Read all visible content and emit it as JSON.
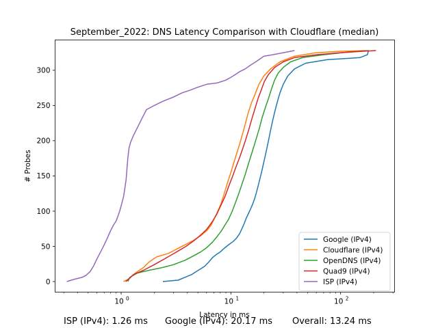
{
  "chart_data": {
    "type": "line",
    "title": "September_2022: DNS Latency Comparison with Cloudflare (median)",
    "xlabel": "Latency in ms",
    "ylabel": "# Probes",
    "xscale": "log",
    "xlim": [
      0.25,
      310
    ],
    "ylim": [
      -15,
      343
    ],
    "xticks": [
      {
        "value": 1,
        "label": "10",
        "exp": "0"
      },
      {
        "value": 10,
        "label": "10",
        "exp": "1"
      },
      {
        "value": 100,
        "label": "10",
        "exp": "2"
      }
    ],
    "yticks": [
      0,
      50,
      100,
      150,
      200,
      250,
      300
    ],
    "grid": false,
    "legend_position": "lower right",
    "series": [
      {
        "name": "Google (IPv4)",
        "color": "#1f77b4",
        "points": [
          [
            2.4,
            0
          ],
          [
            3.3,
            2
          ],
          [
            3.8,
            6
          ],
          [
            4.4,
            10
          ],
          [
            4.8,
            14
          ],
          [
            5.3,
            18
          ],
          [
            5.8,
            22
          ],
          [
            6.3,
            28
          ],
          [
            6.8,
            34
          ],
          [
            7.3,
            38
          ],
          [
            8.0,
            42
          ],
          [
            8.8,
            48
          ],
          [
            9.5,
            52
          ],
          [
            10.5,
            57
          ],
          [
            11.3,
            62
          ],
          [
            12.0,
            68
          ],
          [
            12.6,
            75
          ],
          [
            13.2,
            82
          ],
          [
            13.8,
            90
          ],
          [
            14.8,
            100
          ],
          [
            15.8,
            110
          ],
          [
            16.5,
            118
          ],
          [
            17.2,
            128
          ],
          [
            18.0,
            140
          ],
          [
            19.0,
            155
          ],
          [
            20.0,
            170
          ],
          [
            21.0,
            185
          ],
          [
            22.0,
            200
          ],
          [
            23.0,
            215
          ],
          [
            24.0,
            228
          ],
          [
            25.0,
            240
          ],
          [
            26.5,
            255
          ],
          [
            28.0,
            268
          ],
          [
            30.0,
            280
          ],
          [
            33.0,
            292
          ],
          [
            38.0,
            302
          ],
          [
            48.0,
            310
          ],
          [
            75.0,
            315
          ],
          [
            150,
            318
          ],
          [
            175,
            322
          ],
          [
            180,
            328
          ]
        ]
      },
      {
        "name": "Cloudflare (IPv4)",
        "color": "#ff7f0e",
        "points": [
          [
            1.05,
            0
          ],
          [
            1.15,
            3
          ],
          [
            1.25,
            8
          ],
          [
            1.4,
            14
          ],
          [
            1.6,
            20
          ],
          [
            1.8,
            28
          ],
          [
            2.1,
            35
          ],
          [
            2.7,
            40
          ],
          [
            3.2,
            46
          ],
          [
            3.8,
            52
          ],
          [
            4.5,
            58
          ],
          [
            5.3,
            65
          ],
          [
            6.0,
            72
          ],
          [
            6.6,
            80
          ],
          [
            7.1,
            90
          ],
          [
            7.6,
            100
          ],
          [
            8.1,
            110
          ],
          [
            8.7,
            125
          ],
          [
            9.3,
            140
          ],
          [
            10.0,
            155
          ],
          [
            10.6,
            168
          ],
          [
            11.2,
            180
          ],
          [
            12.0,
            195
          ],
          [
            12.8,
            210
          ],
          [
            13.6,
            225
          ],
          [
            14.4,
            240
          ],
          [
            15.5,
            255
          ],
          [
            16.8,
            268
          ],
          [
            18.0,
            280
          ],
          [
            20.0,
            292
          ],
          [
            23.0,
            302
          ],
          [
            28.0,
            312
          ],
          [
            38.0,
            320
          ],
          [
            60.0,
            325
          ],
          [
            100,
            327
          ],
          [
            170,
            328
          ]
        ]
      },
      {
        "name": "OpenDNS (IPv4)",
        "color": "#2ca02c",
        "points": [
          [
            1.15,
            0
          ],
          [
            1.2,
            6
          ],
          [
            1.4,
            12
          ],
          [
            1.8,
            16
          ],
          [
            2.4,
            20
          ],
          [
            3.0,
            24
          ],
          [
            3.8,
            30
          ],
          [
            4.5,
            36
          ],
          [
            5.3,
            42
          ],
          [
            6.0,
            48
          ],
          [
            6.8,
            56
          ],
          [
            7.5,
            64
          ],
          [
            8.2,
            72
          ],
          [
            8.8,
            80
          ],
          [
            9.5,
            88
          ],
          [
            10.3,
            100
          ],
          [
            11.0,
            112
          ],
          [
            11.8,
            125
          ],
          [
            12.6,
            138
          ],
          [
            13.5,
            152
          ],
          [
            14.3,
            165
          ],
          [
            15.2,
            178
          ],
          [
            16.2,
            192
          ],
          [
            17.2,
            205
          ],
          [
            18.2,
            218
          ],
          [
            19.2,
            232
          ],
          [
            20.5,
            246
          ],
          [
            22.0,
            260
          ],
          [
            23.5,
            274
          ],
          [
            25.0,
            286
          ],
          [
            27.0,
            296
          ],
          [
            30.0,
            304
          ],
          [
            35.0,
            312
          ],
          [
            45.0,
            318
          ],
          [
            70.0,
            322
          ],
          [
            120,
            326
          ],
          [
            180,
            328
          ]
        ]
      },
      {
        "name": "Quad9 (IPv4)",
        "color": "#d62728",
        "points": [
          [
            1.1,
            0
          ],
          [
            1.2,
            5
          ],
          [
            1.3,
            10
          ],
          [
            1.6,
            16
          ],
          [
            2.0,
            24
          ],
          [
            2.6,
            34
          ],
          [
            3.2,
            42
          ],
          [
            3.9,
            50
          ],
          [
            4.6,
            58
          ],
          [
            5.3,
            66
          ],
          [
            6.0,
            74
          ],
          [
            6.7,
            84
          ],
          [
            7.4,
            95
          ],
          [
            8.1,
            108
          ],
          [
            8.9,
            122
          ],
          [
            9.6,
            136
          ],
          [
            10.4,
            150
          ],
          [
            11.2,
            164
          ],
          [
            12.0,
            176
          ],
          [
            12.9,
            190
          ],
          [
            13.8,
            204
          ],
          [
            14.7,
            218
          ],
          [
            15.6,
            232
          ],
          [
            16.6,
            246
          ],
          [
            17.7,
            260
          ],
          [
            18.9,
            272
          ],
          [
            20.2,
            284
          ],
          [
            22.0,
            294
          ],
          [
            25.0,
            304
          ],
          [
            30.0,
            312
          ],
          [
            38.0,
            318
          ],
          [
            60.0,
            322
          ],
          [
            100,
            325
          ],
          [
            160,
            327
          ],
          [
            210,
            328
          ]
        ]
      },
      {
        "name": "ISP (IPv4)",
        "color": "#9467bd",
        "points": [
          [
            0.32,
            0
          ],
          [
            0.37,
            3
          ],
          [
            0.44,
            6
          ],
          [
            0.48,
            9
          ],
          [
            0.52,
            14
          ],
          [
            0.56,
            22
          ],
          [
            0.6,
            32
          ],
          [
            0.65,
            42
          ],
          [
            0.7,
            52
          ],
          [
            0.75,
            62
          ],
          [
            0.8,
            72
          ],
          [
            0.85,
            80
          ],
          [
            0.9,
            86
          ],
          [
            0.93,
            92
          ],
          [
            0.97,
            100
          ],
          [
            1.01,
            110
          ],
          [
            1.05,
            120
          ],
          [
            1.08,
            132
          ],
          [
            1.11,
            145
          ],
          [
            1.13,
            160
          ],
          [
            1.15,
            175
          ],
          [
            1.18,
            190
          ],
          [
            1.22,
            198
          ],
          [
            1.3,
            208
          ],
          [
            1.42,
            220
          ],
          [
            1.55,
            232
          ],
          [
            1.7,
            244
          ],
          [
            2.0,
            250
          ],
          [
            2.4,
            256
          ],
          [
            3.0,
            262
          ],
          [
            3.6,
            268
          ],
          [
            4.3,
            272
          ],
          [
            5.0,
            276
          ],
          [
            6.0,
            280
          ],
          [
            7.5,
            282
          ],
          [
            9.0,
            286
          ],
          [
            10.0,
            290
          ],
          [
            11.0,
            294
          ],
          [
            12.0,
            298
          ],
          [
            13.5,
            302
          ],
          [
            15.0,
            307
          ],
          [
            16.5,
            311
          ],
          [
            18.0,
            315
          ],
          [
            20.0,
            320
          ],
          [
            24.0,
            322
          ],
          [
            30.0,
            325
          ],
          [
            38.0,
            328
          ]
        ]
      }
    ]
  },
  "footer": {
    "isp": "ISP (IPv4): 1.26 ms",
    "google": "Google (IPv4): 20.17 ms",
    "overall": "Overall: 13.24 ms"
  }
}
